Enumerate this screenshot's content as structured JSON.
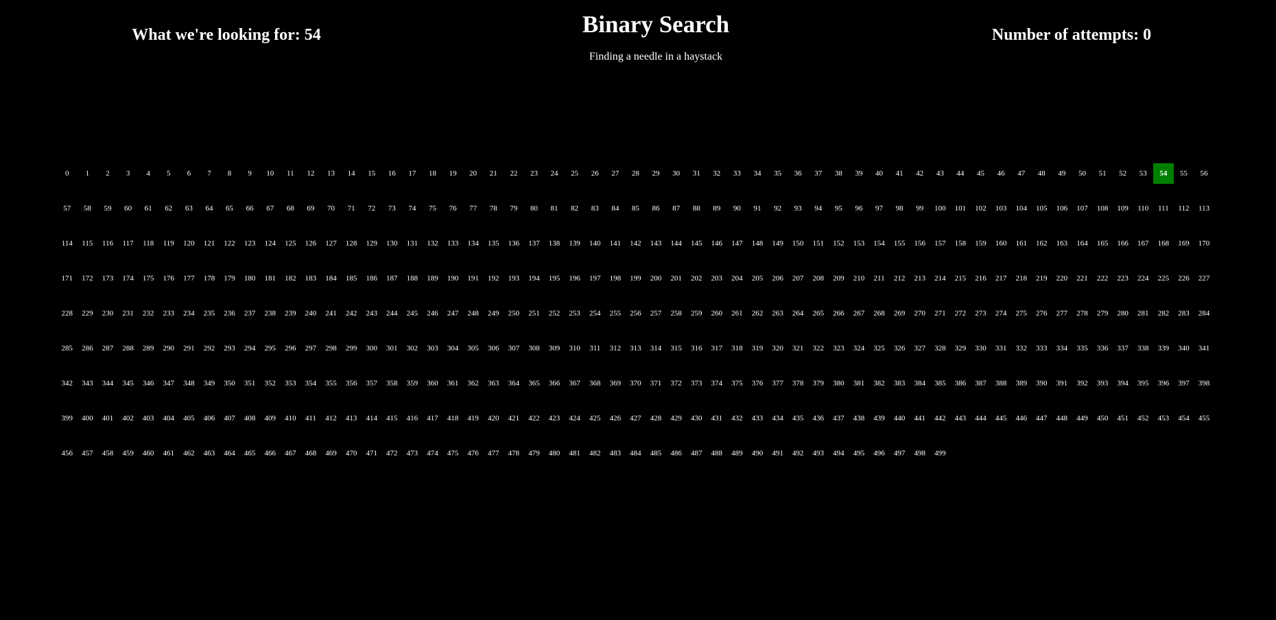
{
  "header": {
    "target_label": "What we're looking for: 54",
    "title": "Binary Search",
    "subtitle": "Finding a needle in a haystack",
    "attempts_label": "Number of attempts: 0"
  },
  "grid": {
    "start": 0,
    "end": 499,
    "highlighted": 54,
    "highlight_color": "#008000",
    "background_color": "#000000",
    "text_color": "#ffffff"
  }
}
